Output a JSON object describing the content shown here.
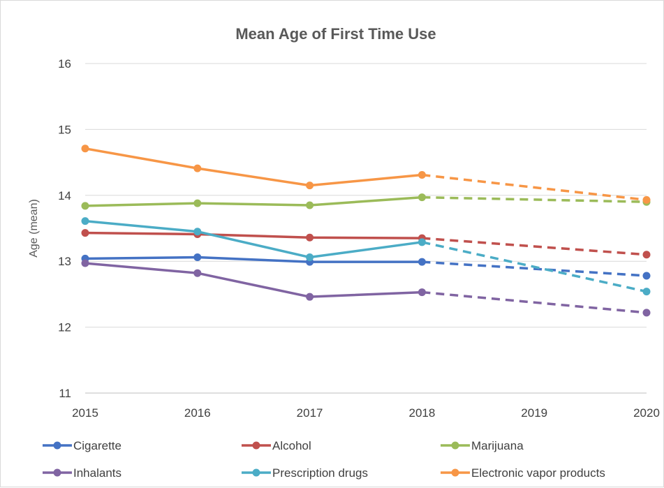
{
  "chart_data": {
    "type": "line",
    "title": "Mean Age of First Time Use",
    "xlabel": "",
    "ylabel": "Age (mean)",
    "x": [
      2015,
      2016,
      2017,
      2018,
      2019,
      2020
    ],
    "x_tick_labels": [
      "2015",
      "2016",
      "2017",
      "2018",
      "2019",
      "2020"
    ],
    "xlim": [
      2015,
      2020
    ],
    "ylim": [
      11,
      16
    ],
    "y_ticks": [
      11,
      12,
      13,
      14,
      15,
      16
    ],
    "y_tick_labels": [
      "11",
      "12",
      "13",
      "14",
      "15",
      "16"
    ],
    "grid": "horizontal",
    "legend_position": "bottom",
    "series": [
      {
        "name": "Cigarette",
        "color": "#4472c4",
        "solid": [
          [
            2015,
            13.04
          ],
          [
            2016,
            13.06
          ],
          [
            2017,
            12.99
          ],
          [
            2018,
            12.99
          ]
        ],
        "projected": [
          [
            2018,
            12.99
          ],
          [
            2020,
            12.78
          ]
        ]
      },
      {
        "name": "Alcohol",
        "color": "#c0504d",
        "solid": [
          [
            2015,
            13.43
          ],
          [
            2016,
            13.41
          ],
          [
            2017,
            13.36
          ],
          [
            2018,
            13.35
          ]
        ],
        "projected": [
          [
            2018,
            13.35
          ],
          [
            2020,
            13.1
          ]
        ]
      },
      {
        "name": "Marijuana",
        "color": "#9bbb59",
        "solid": [
          [
            2015,
            13.84
          ],
          [
            2016,
            13.88
          ],
          [
            2017,
            13.85
          ],
          [
            2018,
            13.97
          ]
        ],
        "projected": [
          [
            2018,
            13.97
          ],
          [
            2020,
            13.9
          ]
        ]
      },
      {
        "name": "Inhalants",
        "color": "#8064a2",
        "solid": [
          [
            2015,
            12.97
          ],
          [
            2016,
            12.82
          ],
          [
            2017,
            12.46
          ],
          [
            2018,
            12.53
          ]
        ],
        "projected": [
          [
            2018,
            12.53
          ],
          [
            2020,
            12.22
          ]
        ]
      },
      {
        "name": "Prescription drugs",
        "color": "#4bacc6",
        "solid": [
          [
            2015,
            13.61
          ],
          [
            2016,
            13.45
          ],
          [
            2017,
            13.06
          ],
          [
            2018,
            13.29
          ]
        ],
        "projected": [
          [
            2018,
            13.29
          ],
          [
            2020,
            12.54
          ]
        ]
      },
      {
        "name": "Electronic vapor products",
        "color": "#f79646",
        "solid": [
          [
            2015,
            14.71
          ],
          [
            2016,
            14.41
          ],
          [
            2017,
            14.15
          ],
          [
            2018,
            14.31
          ]
        ],
        "projected": [
          [
            2018,
            14.31
          ],
          [
            2020,
            13.93
          ]
        ]
      }
    ]
  }
}
